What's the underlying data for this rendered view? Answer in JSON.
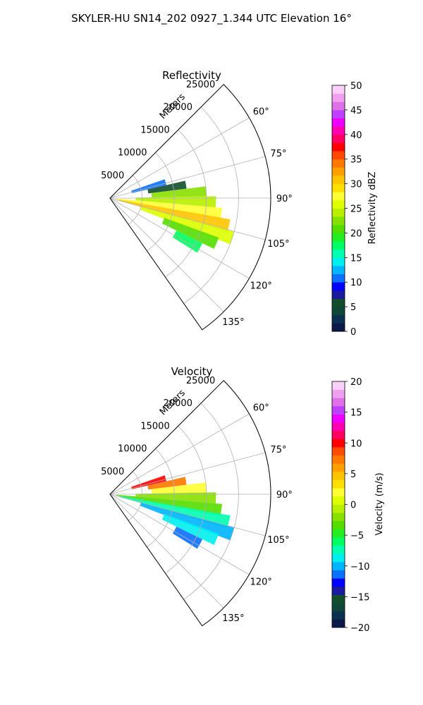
{
  "figure": {
    "suptitle": "SKYLER-HU  SN14_202  0927_1.344 UTC Elevation 16°"
  },
  "chart_data": [
    {
      "type": "heatmap",
      "title": "Reflectivity",
      "radial_axis_label": "Meters",
      "r_ticks": [
        5000,
        10000,
        15000,
        20000,
        25000
      ],
      "r_tick_labels": [
        "5000",
        "10000",
        "15000",
        "20000",
        "25000"
      ],
      "rlim": [
        0,
        25000
      ],
      "theta_ticks": [
        60,
        75,
        90,
        105,
        120,
        135
      ],
      "theta_tick_labels": [
        "60°",
        "75°",
        "90°",
        "105°",
        "120°",
        "135°"
      ],
      "theta_range_deg": [
        45,
        145
      ],
      "grid": true,
      "colorbar": {
        "label": "Reflectivity dBZ",
        "range": [
          0,
          50
        ],
        "ticks": [
          0,
          5,
          10,
          15,
          20,
          25,
          30,
          35,
          40,
          45,
          50
        ],
        "tick_labels": [
          "0",
          "5",
          "10",
          "15",
          "20",
          "25",
          "30",
          "35",
          "40",
          "45",
          "50"
        ],
        "colormap": [
          "#0b1a4a",
          "#0a3050",
          "#0f4838",
          "#124e2c",
          "#1a1aa0",
          "#0000ff",
          "#0a70ff",
          "#00b4ff",
          "#00f0f0",
          "#00ffb0",
          "#00ff60",
          "#22ee22",
          "#55dd00",
          "#88e000",
          "#b8f000",
          "#ddff00",
          "#ffff33",
          "#ffe000",
          "#ffc400",
          "#ffa000",
          "#ff7800",
          "#ff4800",
          "#ff0000",
          "#ff0060",
          "#ff00b0",
          "#ee00ff",
          "#c040ff",
          "#e070e8",
          "#f0a0f0",
          "#fad0fa"
        ]
      },
      "echoes": [
        {
          "theta_deg": 74,
          "range_m": [
            3500,
            9000
          ],
          "value": 10
        },
        {
          "theta_deg": 80,
          "range_m": [
            6000,
            12000
          ],
          "value": 5
        },
        {
          "theta_deg": 86,
          "range_m": [
            6500,
            15000
          ],
          "value": 22
        },
        {
          "theta_deg": 92,
          "range_m": [
            4000,
            16500
          ],
          "value": 24
        },
        {
          "theta_deg": 98,
          "range_m": [
            1000,
            17500
          ],
          "value": 27
        },
        {
          "theta_deg": 103,
          "range_m": [
            1500,
            19000
          ],
          "value": 30
        },
        {
          "theta_deg": 108,
          "range_m": [
            5000,
            20000
          ],
          "value": 26
        },
        {
          "theta_deg": 113,
          "range_m": [
            9000,
            18000
          ],
          "value": 21
        },
        {
          "theta_deg": 119,
          "range_m": [
            11500,
            16000
          ],
          "value": 18
        }
      ]
    },
    {
      "type": "heatmap",
      "title": "Velocity",
      "radial_axis_label": "Meters",
      "r_ticks": [
        5000,
        10000,
        15000,
        20000,
        25000
      ],
      "r_tick_labels": [
        "5000",
        "10000",
        "15000",
        "20000",
        "25000"
      ],
      "rlim": [
        0,
        25000
      ],
      "theta_ticks": [
        60,
        75,
        90,
        105,
        120,
        135
      ],
      "theta_tick_labels": [
        "60°",
        "75°",
        "90°",
        "105°",
        "120°",
        "135°"
      ],
      "theta_range_deg": [
        45,
        145
      ],
      "grid": true,
      "colorbar": {
        "label": "Velocity (m/s)",
        "range": [
          -20,
          20
        ],
        "ticks": [
          -20,
          -15,
          -10,
          -5,
          0,
          5,
          10,
          15,
          20
        ],
        "tick_labels": [
          "−20",
          "−15",
          "−10",
          "−5",
          "0",
          "5",
          "10",
          "15",
          "20"
        ],
        "colormap": [
          "#0b1a4a",
          "#0a3050",
          "#0f4838",
          "#124e2c",
          "#1a1aa0",
          "#0000ff",
          "#0a70ff",
          "#00b4ff",
          "#00f0f0",
          "#00ffb0",
          "#00ff60",
          "#22ee22",
          "#55dd00",
          "#88e000",
          "#b8f000",
          "#ddff00",
          "#ffff33",
          "#ffe000",
          "#ffc400",
          "#ffa000",
          "#ff7800",
          "#ff4800",
          "#ff0000",
          "#ff0060",
          "#ff00b0",
          "#ee00ff",
          "#c040ff",
          "#e070e8",
          "#f0a0f0",
          "#fad0fa"
        ]
      },
      "echoes": [
        {
          "theta_deg": 74,
          "range_m": [
            3500,
            9000
          ],
          "value": 10
        },
        {
          "theta_deg": 80,
          "range_m": [
            6000,
            12000
          ],
          "value": 7
        },
        {
          "theta_deg": 86,
          "range_m": [
            6500,
            15000
          ],
          "value": 2
        },
        {
          "theta_deg": 92,
          "range_m": [
            4000,
            16500
          ],
          "value": -2
        },
        {
          "theta_deg": 98,
          "range_m": [
            1000,
            17500
          ],
          "value": -4
        },
        {
          "theta_deg": 103,
          "range_m": [
            1500,
            19000
          ],
          "value": -8
        },
        {
          "theta_deg": 108,
          "range_m": [
            5000,
            20000
          ],
          "value": -10
        },
        {
          "theta_deg": 113,
          "range_m": [
            9000,
            18000
          ],
          "value": -9
        },
        {
          "theta_deg": 119,
          "range_m": [
            11500,
            16000
          ],
          "value": -12
        }
      ]
    }
  ]
}
